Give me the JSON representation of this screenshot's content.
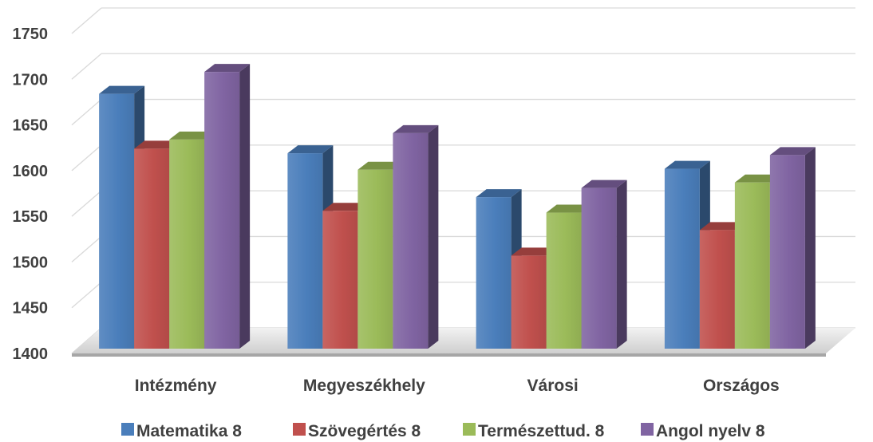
{
  "chart_data": {
    "type": "bar",
    "categories": [
      "Intézmény",
      "Megyeszékhely",
      "Városi",
      "Országos"
    ],
    "series": [
      {
        "name": "Matematika 8",
        "values": [
          1684,
          1619,
          1571,
          1602
        ],
        "color": "#4a7ebb"
      },
      {
        "name": "Szövegértés 8",
        "values": [
          1624,
          1556,
          1507,
          1535
        ],
        "color": "#c0504d"
      },
      {
        "name": "Természettud. 8",
        "values": [
          1634,
          1601,
          1554,
          1587
        ],
        "color": "#9bbb59"
      },
      {
        "name": "Angol nyelv 8",
        "values": [
          1708,
          1641,
          1581,
          1617
        ],
        "color": "#8064a2"
      }
    ],
    "yticks": [
      "1400",
      "1450",
      "1500",
      "1550",
      "1600",
      "1650",
      "1700",
      "1750"
    ],
    "ylim": [
      1400,
      1750
    ],
    "grid": true,
    "legend_position": "bottom",
    "style": "3d-clustered-column"
  }
}
